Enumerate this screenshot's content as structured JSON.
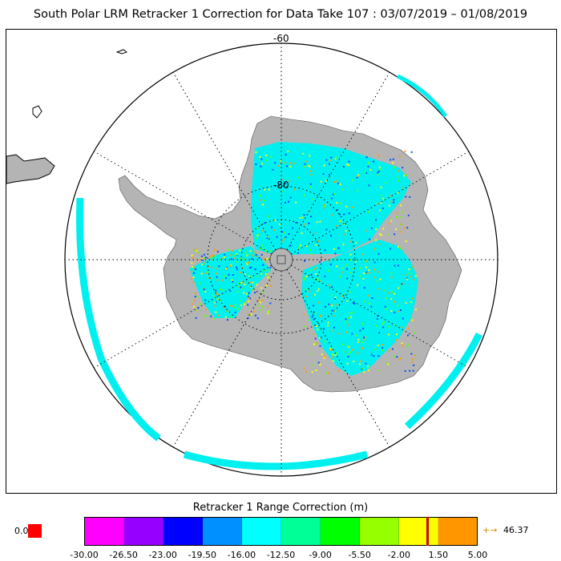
{
  "title": "South Polar LRM Retracker 1 Correction for Data Take 107 : 03/07/2019 – 01/08/2019",
  "map": {
    "lat_labels": [
      "-60",
      "-80"
    ],
    "colors": {
      "land": "#b4b4b4",
      "graticule": "#000000",
      "data_main": "#00f0f0",
      "data_blue": "#0050ff",
      "data_orange": "#ff9a00",
      "data_yellow": "#ffff00",
      "data_green": "#60ff00"
    }
  },
  "legend": {
    "title": "Retracker 1 Range Correction (m)",
    "nodata_label": "0.0",
    "nodata_color": "#ff0000",
    "max_arrow": "+→",
    "max_value": "46.37",
    "marker_value": 0.5,
    "range": [
      -30.0,
      5.0
    ],
    "segments": [
      {
        "color": "#ff00ff"
      },
      {
        "color": "#9600ff"
      },
      {
        "color": "#0000ff"
      },
      {
        "color": "#0090ff"
      },
      {
        "color": "#00ffff"
      },
      {
        "color": "#00ff96"
      },
      {
        "color": "#00ff00"
      },
      {
        "color": "#96ff00"
      },
      {
        "color": "#ffff00"
      },
      {
        "color": "#ff9600"
      }
    ],
    "ticks": [
      "-30.00",
      "-26.50",
      "-23.00",
      "-19.50",
      "-16.00",
      "-12.50",
      "-9.00",
      "-5.50",
      "-2.00",
      "1.50",
      "5.00"
    ]
  }
}
